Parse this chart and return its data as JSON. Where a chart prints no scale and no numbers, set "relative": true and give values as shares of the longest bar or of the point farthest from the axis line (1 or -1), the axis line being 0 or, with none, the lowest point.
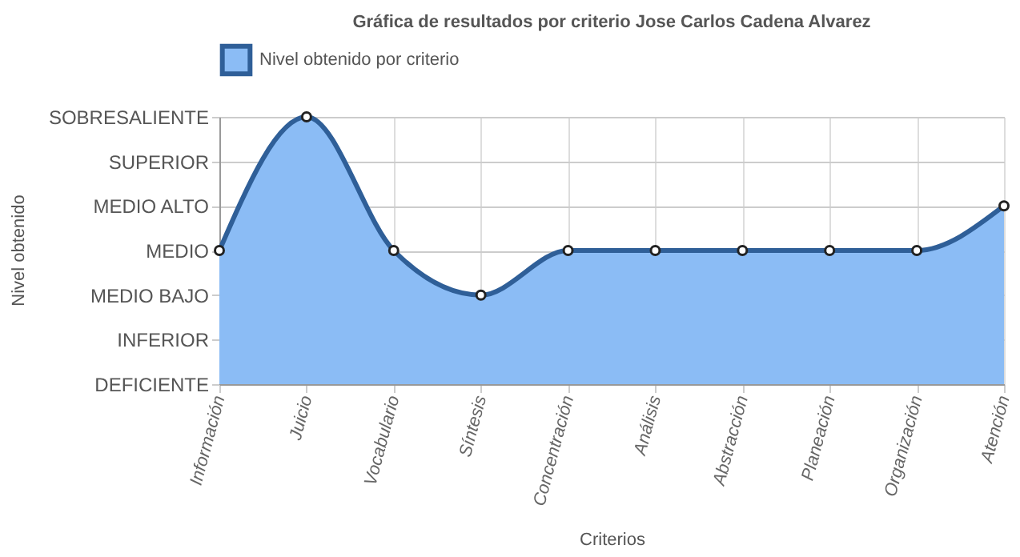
{
  "chart_data": {
    "type": "area",
    "title": "Gráfica de resultados por criterio Jose Carlos Cadena Alvarez",
    "xlabel": "Criterios",
    "annotations": [
      "Nivel obtenido"
    ],
    "categories": [
      "Información",
      "Juicio",
      "Vocabulario",
      "Síntesis",
      "Concentración",
      "Análisis",
      "Abstracción",
      "Planeación",
      "Organización",
      "Atención"
    ],
    "y_categories": [
      "SOBRESALIENTE",
      "SUPERIOR",
      "MEDIO ALTO",
      "MEDIO",
      "MEDIO BAJO",
      "INFERIOR",
      "DEFICIENTE"
    ],
    "relative": true,
    "series": [
      {
        "name": "Nivel obtenido por criterio",
        "color": "#2f5f98",
        "values": [
          0.5,
          1,
          0.5,
          0.333,
          0.5,
          0.5,
          0.5,
          0.5,
          0.5,
          0.667
        ]
      }
    ],
    "grid": true,
    "legend": "top",
    "marker": "circle"
  }
}
